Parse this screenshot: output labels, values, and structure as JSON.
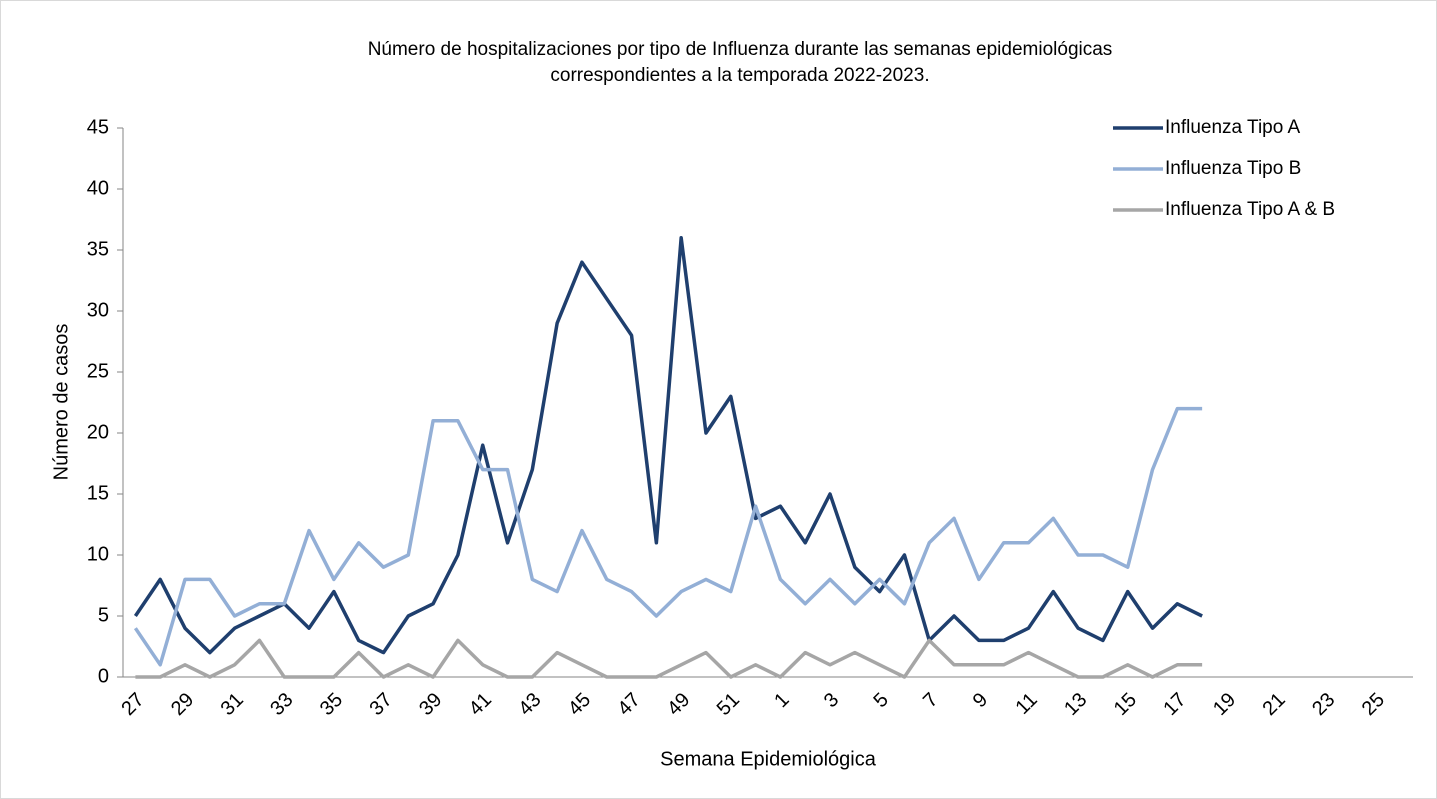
{
  "chart_data": {
    "type": "line",
    "title": [
      "Número de hospitalizaciones por tipo de Influenza durante las semanas epidemiológicas",
      "correspondientes a la temporada 2022-2023."
    ],
    "x_label": "Semana Epidemiológica",
    "y_label": "Número de casos",
    "categories": [
      "27",
      null,
      "29",
      null,
      "31",
      null,
      "33",
      null,
      "35",
      null,
      "37",
      null,
      "39",
      null,
      "41",
      null,
      "43",
      null,
      "45",
      null,
      "47",
      null,
      "49",
      null,
      "51",
      null,
      "1",
      null,
      "3",
      null,
      "5",
      null,
      "7",
      null,
      "9",
      null,
      "11",
      null,
      "13",
      null,
      "15",
      null,
      "17",
      null,
      "19",
      null,
      "21",
      null,
      "23",
      null,
      "25",
      null
    ],
    "series": [
      {
        "name": "Influenza Tipo A",
        "color": "#1f3f6e",
        "values": [
          5,
          8,
          4,
          2,
          4,
          5,
          6,
          4,
          7,
          3,
          2,
          5,
          6,
          10,
          19,
          11,
          17,
          29,
          34,
          31,
          28,
          11,
          36,
          20,
          23,
          13,
          14,
          11,
          15,
          9,
          7,
          10,
          3,
          5,
          3,
          3,
          4,
          7,
          4,
          3,
          7,
          4,
          6,
          5,
          null,
          null,
          null,
          null,
          null,
          null,
          null,
          null
        ]
      },
      {
        "name": "Influenza Tipo B",
        "color": "#93afd6",
        "values": [
          4,
          1,
          8,
          8,
          5,
          6,
          6,
          12,
          8,
          11,
          9,
          10,
          21,
          21,
          17,
          17,
          8,
          7,
          12,
          8,
          7,
          5,
          7,
          8,
          7,
          14,
          8,
          6,
          8,
          6,
          8,
          6,
          11,
          13,
          8,
          11,
          11,
          13,
          10,
          10,
          9,
          17,
          22,
          22,
          null,
          null,
          null,
          null,
          null,
          null,
          null,
          null
        ]
      },
      {
        "name": "Influenza Tipo A & B",
        "color": "#a6a6a6",
        "values": [
          0,
          0,
          1,
          0,
          1,
          3,
          0,
          0,
          0,
          2,
          0,
          1,
          0,
          3,
          1,
          0,
          0,
          2,
          1,
          0,
          0,
          0,
          1,
          2,
          0,
          1,
          0,
          2,
          1,
          2,
          1,
          0,
          3,
          1,
          1,
          1,
          2,
          1,
          0,
          0,
          1,
          0,
          1,
          1,
          null,
          null,
          null,
          null,
          null,
          null,
          null,
          null
        ]
      }
    ],
    "ylim": [
      0,
      45
    ],
    "yticks": [
      0,
      5,
      10,
      15,
      20,
      25,
      30,
      35,
      40,
      45
    ],
    "legend": "top-right"
  }
}
